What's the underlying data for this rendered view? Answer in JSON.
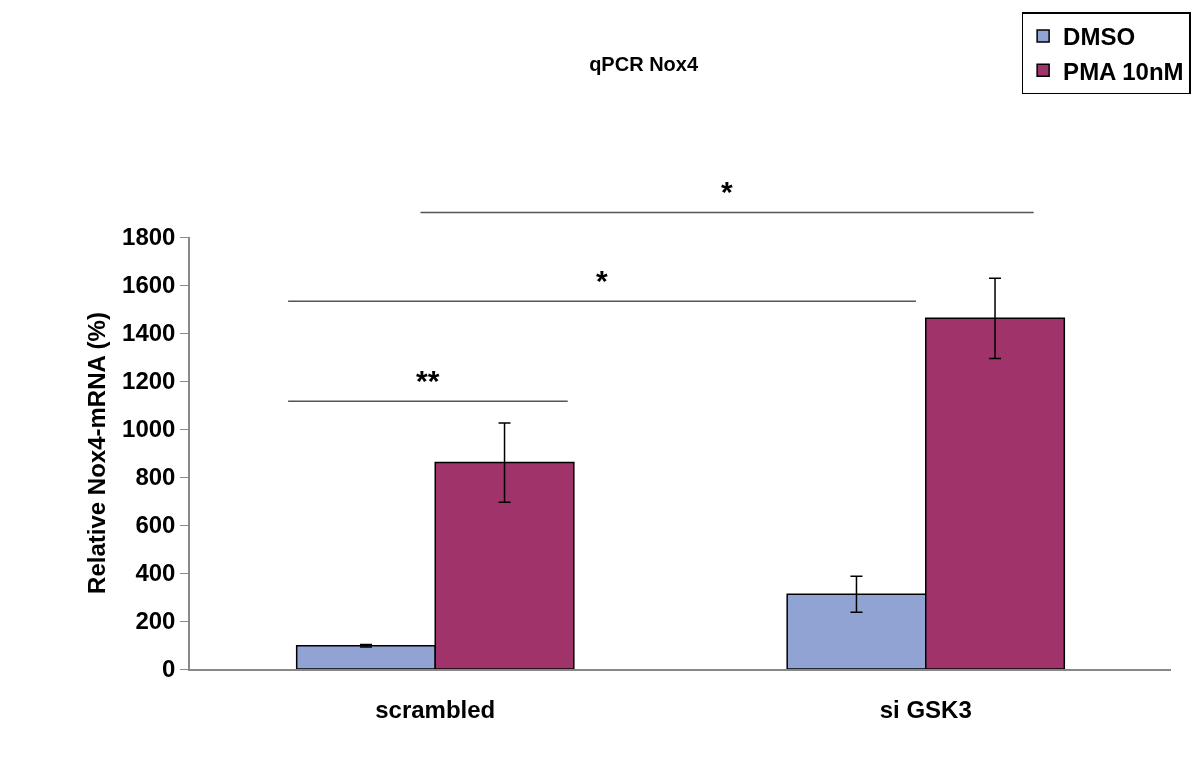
{
  "chart_data": {
    "type": "bar",
    "title": "qPCR Nox4",
    "ylabel": "Relative Nox4-mRNA (%)",
    "categories": [
      "scrambled",
      "si GSK3"
    ],
    "series": [
      {
        "name": "DMSO",
        "color": "#91a3d3",
        "values": [
          97,
          311
        ],
        "errors": [
          5,
          75
        ]
      },
      {
        "name": "PMA 10nM",
        "color": "#a0336a",
        "values": [
          860,
          1461
        ],
        "errors": [
          165,
          167
        ]
      }
    ],
    "ylim": [
      0,
      1800
    ],
    "yticks": [
      0,
      200,
      400,
      600,
      800,
      1000,
      1200,
      1400,
      1600,
      1800
    ],
    "annotations": [
      "**",
      "*",
      "*"
    ],
    "legend": "top right"
  }
}
